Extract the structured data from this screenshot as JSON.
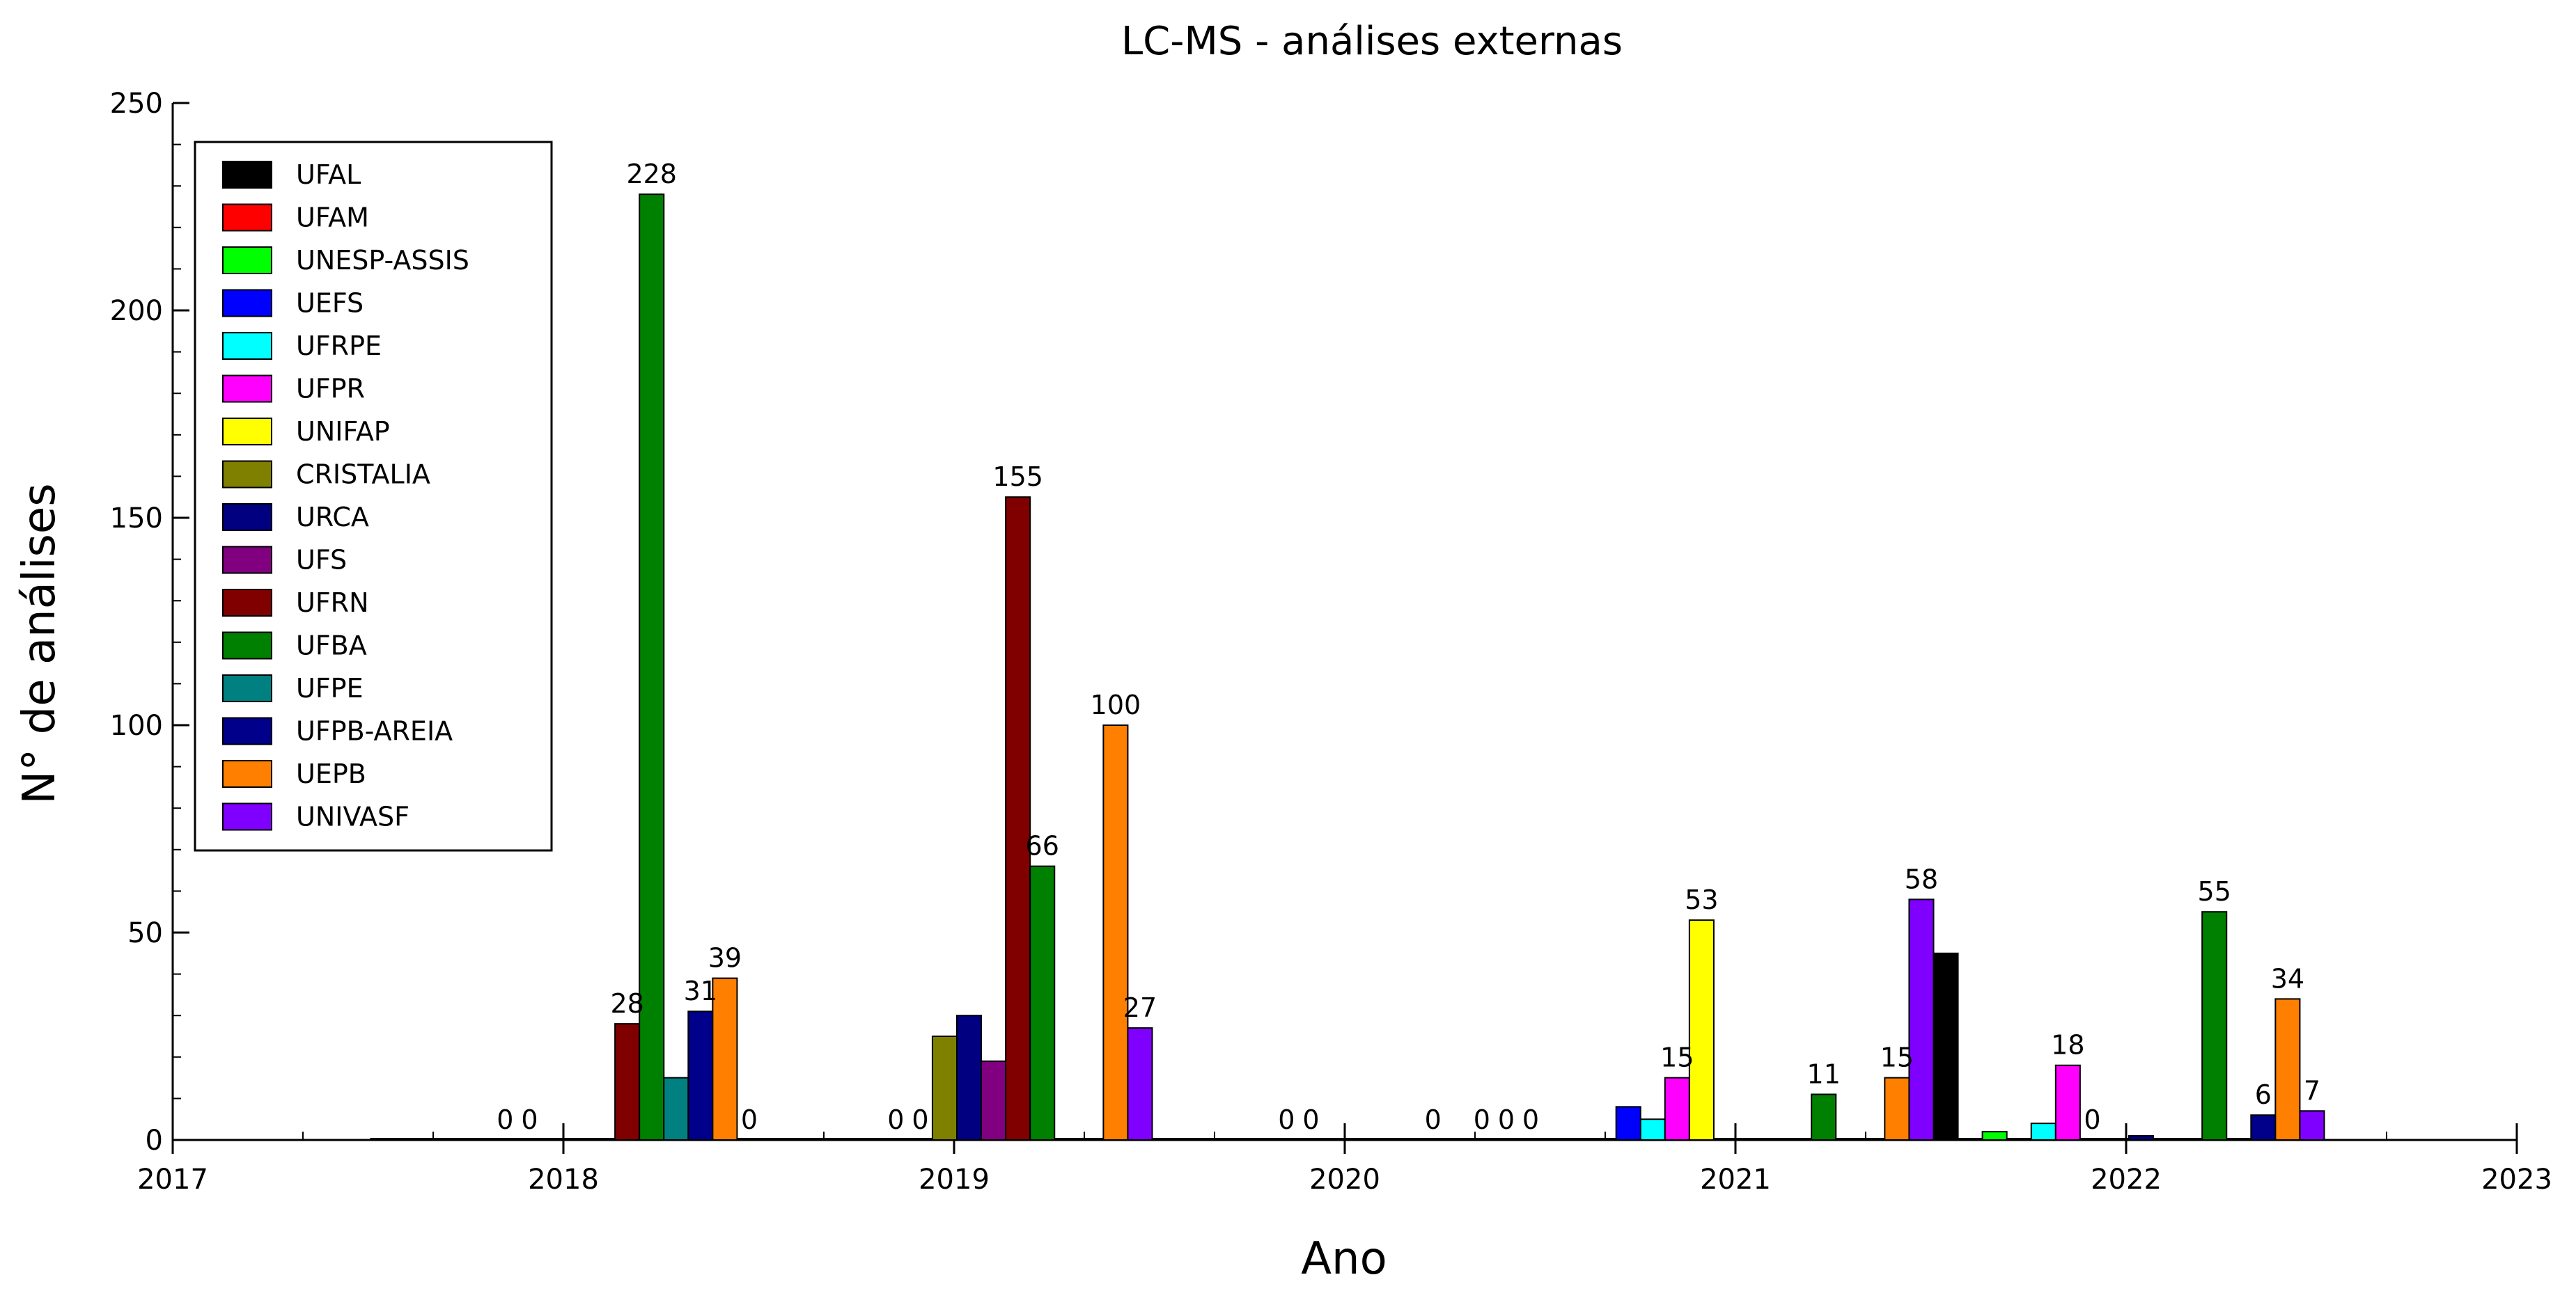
{
  "chart_data": {
    "type": "bar",
    "title": "LC-MS - análises externas",
    "xlabel": "Ano",
    "ylabel": "N° de análises",
    "xlim": [
      2017,
      2023
    ],
    "ylim": [
      0,
      250
    ],
    "xticks": [
      "2017",
      "2018",
      "2019",
      "2020",
      "2021",
      "2022",
      "2023"
    ],
    "yticks": [
      "0",
      "50",
      "100",
      "150",
      "200",
      "250"
    ],
    "legend_position": "top-left",
    "grid": false,
    "categories": [
      "2018",
      "2019",
      "2020",
      "2021",
      "2022"
    ],
    "series": [
      {
        "name": "UFAL",
        "color": "#000000",
        "values": [
          0,
          0,
          0,
          0,
          45
        ],
        "labels": [
          "",
          "",
          "",
          "",
          ""
        ]
      },
      {
        "name": "UFAM",
        "color": "#ff0000",
        "values": [
          0,
          0,
          0,
          0,
          0
        ],
        "labels": [
          "",
          "",
          "",
          "",
          ""
        ]
      },
      {
        "name": "UNESP-ASSIS",
        "color": "#00ff00",
        "values": [
          0,
          0,
          0,
          0,
          2
        ],
        "labels": [
          "",
          "",
          "",
          "",
          ""
        ]
      },
      {
        "name": "UEFS",
        "color": "#0000ff",
        "values": [
          0,
          0,
          0,
          8,
          0
        ],
        "labels": [
          "",
          "",
          "",
          "",
          ""
        ]
      },
      {
        "name": "UFRPE",
        "color": "#00ffff",
        "values": [
          0,
          0,
          0,
          5,
          4
        ],
        "labels": [
          "",
          "",
          "",
          "",
          ""
        ]
      },
      {
        "name": "UFPR",
        "color": "#ff00ff",
        "values": [
          0,
          0,
          0,
          15,
          18
        ],
        "labels": [
          "0",
          "0",
          "0",
          "15",
          "18"
        ]
      },
      {
        "name": "UNIFAP",
        "color": "#ffff00",
        "values": [
          0,
          0,
          0,
          53,
          0
        ],
        "labels": [
          "0",
          "0",
          "0",
          "53",
          "0"
        ]
      },
      {
        "name": "CRISTALIA",
        "color": "#808000",
        "values": [
          0,
          25,
          0,
          0,
          0
        ],
        "labels": [
          "",
          "",
          "",
          "",
          ""
        ]
      },
      {
        "name": "URCA",
        "color": "#000080",
        "values": [
          0,
          30,
          0,
          0,
          1
        ],
        "labels": [
          "",
          "",
          "",
          "",
          ""
        ]
      },
      {
        "name": "UFS",
        "color": "#800080",
        "values": [
          0,
          19,
          0,
          0,
          0
        ],
        "labels": [
          "",
          "",
          "",
          "",
          ""
        ]
      },
      {
        "name": "UFRN",
        "color": "#800000",
        "values": [
          28,
          155,
          0,
          0,
          0
        ],
        "labels": [
          "28",
          "155",
          "",
          "",
          ""
        ]
      },
      {
        "name": "UFBA",
        "color": "#008000",
        "values": [
          228,
          66,
          0,
          11,
          55
        ],
        "labels": [
          "228",
          "66",
          "0",
          "11",
          "55"
        ]
      },
      {
        "name": "UFPE",
        "color": "#008080",
        "values": [
          15,
          0,
          0,
          0,
          0
        ],
        "labels": [
          "",
          "",
          "",
          "",
          ""
        ]
      },
      {
        "name": "UFPB-AREIA",
        "color": "#00008b",
        "values": [
          31,
          0,
          0,
          0,
          6
        ],
        "labels": [
          "31",
          "",
          "0",
          "",
          "6"
        ]
      },
      {
        "name": "UEPB",
        "color": "#ff8000",
        "values": [
          39,
          100,
          0,
          15,
          34
        ],
        "labels": [
          "39",
          "100",
          "0",
          "15",
          "34"
        ]
      },
      {
        "name": "UNIVASF",
        "color": "#8000ff",
        "values": [
          0,
          27,
          0,
          58,
          7
        ],
        "labels": [
          "0",
          "27",
          "0",
          "58",
          "7"
        ]
      }
    ]
  }
}
